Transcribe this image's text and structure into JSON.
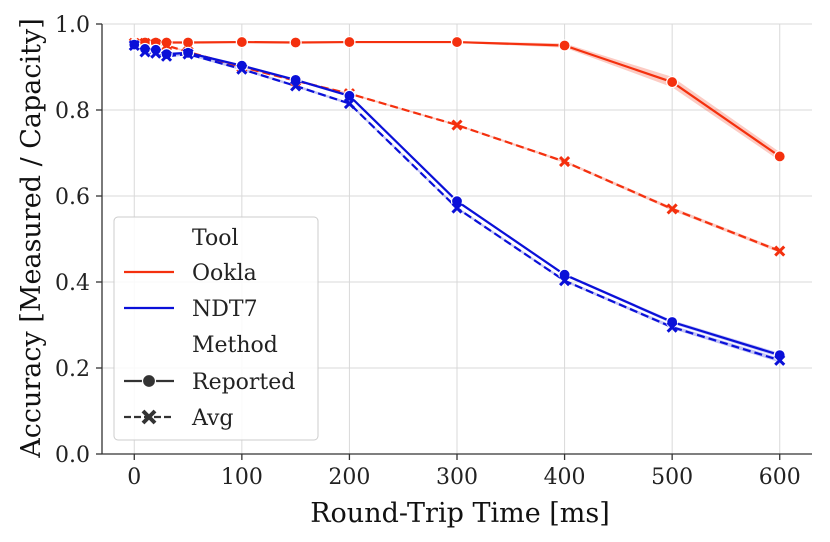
{
  "chart_data": {
    "type": "line",
    "xlabel": "Round-Trip Time [ms]",
    "ylabel": "Accuracy [Measured / Capacity]",
    "xlim": [
      -30,
      630
    ],
    "ylim": [
      0.0,
      1.0
    ],
    "xticks": [
      0,
      100,
      200,
      300,
      400,
      500,
      600
    ],
    "yticks": [
      0.0,
      0.2,
      0.4,
      0.6,
      0.8,
      1.0
    ],
    "xtick_labels": [
      "0",
      "100",
      "200",
      "300",
      "400",
      "500",
      "600"
    ],
    "ytick_labels": [
      "0.0",
      "0.2",
      "0.4",
      "0.6",
      "0.8",
      "1.0"
    ],
    "grid": true,
    "legend_placement": "lower-left",
    "legend": {
      "tool_heading": "Tool",
      "tools": [
        {
          "label": "Ookla",
          "color": "#f4300e"
        },
        {
          "label": "NDT7",
          "color": "#0a10d8"
        }
      ],
      "method_heading": "Method",
      "methods": [
        {
          "label": "Reported",
          "marker": "circle",
          "line": "solid"
        },
        {
          "label": "Avg",
          "marker": "x",
          "line": "dashed"
        }
      ]
    },
    "series": [
      {
        "name": "Ookla",
        "method": "Reported",
        "color": "#f4300e",
        "marker": "circle",
        "dashed": false,
        "x": [
          0,
          10,
          20,
          30,
          50,
          100,
          150,
          200,
          300,
          400,
          500,
          600
        ],
        "y": [
          0.955,
          0.957,
          0.957,
          0.957,
          0.957,
          0.958,
          0.957,
          0.958,
          0.958,
          0.95,
          0.865,
          0.692
        ],
        "band": [
          0.0,
          0.002,
          0.002,
          0.002,
          0.002,
          0.002,
          0.002,
          0.002,
          0.002,
          0.005,
          0.012,
          0.01
        ]
      },
      {
        "name": "Ookla",
        "method": "Avg",
        "color": "#f4300e",
        "marker": "x",
        "dashed": true,
        "x": [
          0,
          10,
          20,
          30,
          50,
          100,
          150,
          200,
          300,
          400,
          500,
          600
        ],
        "y": [
          0.955,
          0.955,
          0.953,
          0.95,
          0.935,
          0.9,
          0.868,
          0.838,
          0.765,
          0.68,
          0.57,
          0.472
        ],
        "band": [
          0.0,
          0.002,
          0.002,
          0.002,
          0.002,
          0.002,
          0.002,
          0.002,
          0.002,
          0.003,
          0.004,
          0.004
        ]
      },
      {
        "name": "NDT7",
        "method": "Reported",
        "color": "#0a10d8",
        "marker": "circle",
        "dashed": false,
        "x": [
          0,
          10,
          20,
          30,
          50,
          100,
          150,
          200,
          300,
          400,
          500,
          600
        ],
        "y": [
          0.952,
          0.942,
          0.94,
          0.93,
          0.933,
          0.903,
          0.87,
          0.833,
          0.588,
          0.417,
          0.307,
          0.23
        ],
        "band": [
          0.0,
          0.003,
          0.003,
          0.003,
          0.003,
          0.003,
          0.003,
          0.003,
          0.003,
          0.003,
          0.004,
          0.005
        ]
      },
      {
        "name": "NDT7",
        "method": "Avg",
        "color": "#0a10d8",
        "marker": "x",
        "dashed": true,
        "x": [
          0,
          10,
          20,
          30,
          50,
          100,
          150,
          200,
          300,
          400,
          500,
          600
        ],
        "y": [
          0.95,
          0.935,
          0.932,
          0.925,
          0.93,
          0.895,
          0.856,
          0.815,
          0.572,
          0.403,
          0.295,
          0.218
        ],
        "band": [
          0.0,
          0.003,
          0.003,
          0.003,
          0.003,
          0.003,
          0.003,
          0.003,
          0.003,
          0.003,
          0.004,
          0.005
        ]
      }
    ]
  }
}
